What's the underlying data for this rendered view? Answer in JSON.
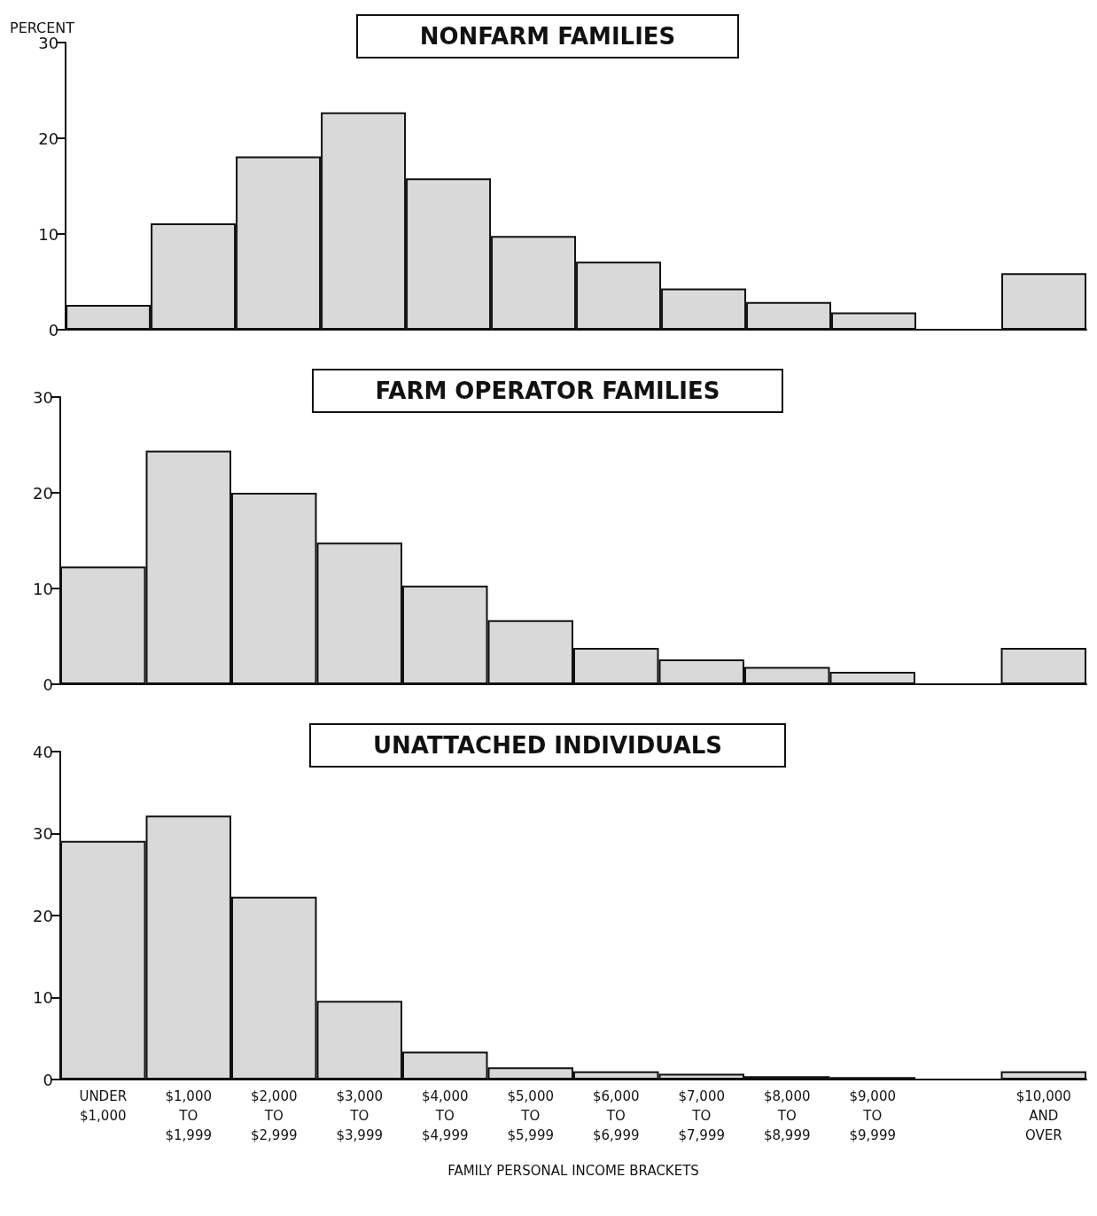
{
  "chart_data": [
    {
      "type": "bar",
      "title": "NONFARM FAMILIES",
      "ylabel": "PERCENT",
      "categories": [
        null,
        null,
        null,
        null,
        null,
        null,
        null,
        null,
        null,
        null,
        null,
        null
      ],
      "values": [
        2.6,
        11.1,
        18.1,
        22.7,
        15.8,
        9.8,
        7.1,
        4.3,
        2.9,
        1.8,
        null,
        5.9
      ],
      "color": "#d9d9d9",
      "ylim": [
        0,
        30
      ],
      "yticks": [
        0,
        10,
        20,
        30
      ],
      "tick_labels": "y"
    },
    {
      "type": "bar",
      "title": "FARM OPERATOR FAMILIES",
      "categories": [
        null,
        null,
        null,
        null,
        null,
        null,
        null,
        null,
        null,
        null,
        null,
        null
      ],
      "values": [
        12.3,
        24.4,
        20.0,
        14.8,
        10.3,
        6.7,
        3.8,
        2.6,
        1.8,
        1.3,
        null,
        3.8
      ],
      "color": "#d9d9d9",
      "ylim": [
        0,
        30
      ],
      "yticks": [
        0,
        10,
        20,
        30
      ],
      "tick_labels": "y"
    },
    {
      "type": "bar",
      "title": "UNATTACHED INDIVIDUALS",
      "xlabel": "FAMILY PERSONAL INCOME BRACKETS",
      "categories": [
        "UNDER\n$1,000",
        "$1,000\nTO\n$1,999",
        "$2,000\nTO\n$2,999",
        "$3,000\nTO\n$3,999",
        "$4,000\nTO\n$4,999",
        "$5,000\nTO\n$5,999",
        "$6,000\nTO\n$6,999",
        "$7,000\nTO\n$7,999",
        "$8,000\nTO\n$8,999",
        "$9,000\nTO\n$9,999",
        null,
        "$10,000\nAND\nOVER"
      ],
      "values": [
        29.1,
        32.2,
        22.3,
        9.6,
        3.4,
        1.5,
        1.0,
        0.7,
        0.4,
        0.3,
        null,
        1.0
      ],
      "color": "#d9d9d9",
      "ylim": [
        0,
        40
      ],
      "yticks": [
        0,
        10,
        20,
        30,
        40
      ]
    }
  ]
}
